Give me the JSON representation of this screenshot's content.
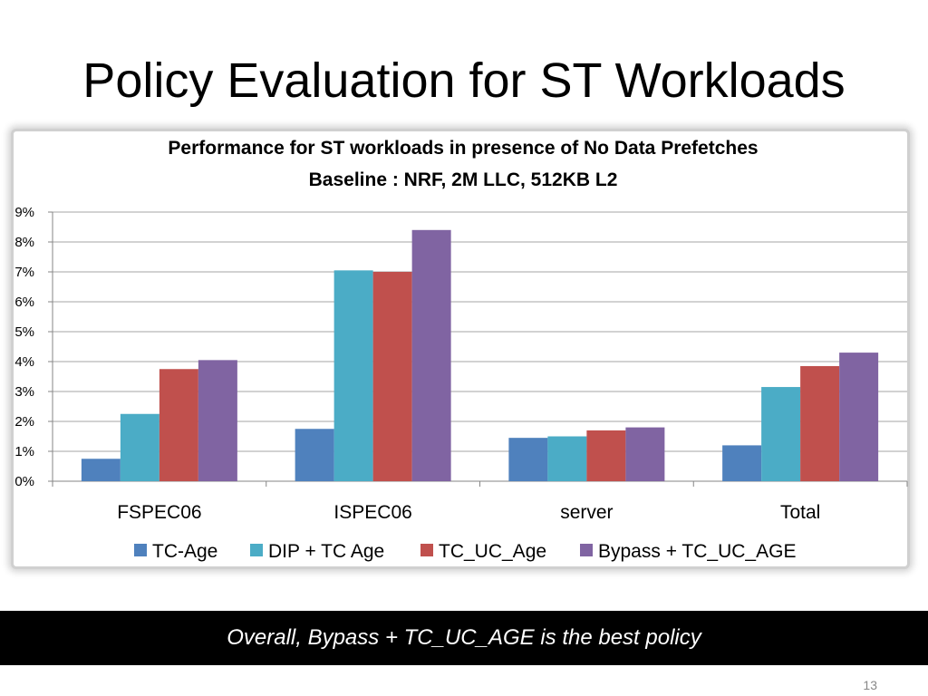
{
  "slide": {
    "title": "Policy Evaluation for ST Workloads",
    "banner": "Overall, Bypass + TC_UC_AGE is the best policy",
    "page_number": "13"
  },
  "chart_data": {
    "type": "bar",
    "title": "Performance for ST workloads in presence of No Data Prefetches",
    "subtitle": "Baseline : NRF, 2M LLC, 512KB L2",
    "xlabel": "",
    "ylabel": "",
    "ylim": [
      0,
      9
    ],
    "y_ticks": [
      "0%",
      "1%",
      "2%",
      "3%",
      "4%",
      "5%",
      "6%",
      "7%",
      "8%",
      "9%"
    ],
    "grid": true,
    "legend_position": "bottom",
    "categories": [
      "FSPEC06",
      "ISPEC06",
      "server",
      "Total"
    ],
    "series": [
      {
        "name": "TC-Age",
        "color": "#4f81bd",
        "values": [
          0.75,
          1.75,
          1.45,
          1.2
        ]
      },
      {
        "name": "DIP + TC Age",
        "color": "#4bacc6",
        "values": [
          2.25,
          7.05,
          1.5,
          3.15
        ]
      },
      {
        "name": "TC_UC_Age",
        "color": "#c0504d",
        "values": [
          3.75,
          7.0,
          1.7,
          3.85
        ]
      },
      {
        "name": "Bypass + TC_UC_AGE",
        "color": "#8064a2",
        "values": [
          4.05,
          8.4,
          1.8,
          4.3
        ]
      }
    ]
  }
}
